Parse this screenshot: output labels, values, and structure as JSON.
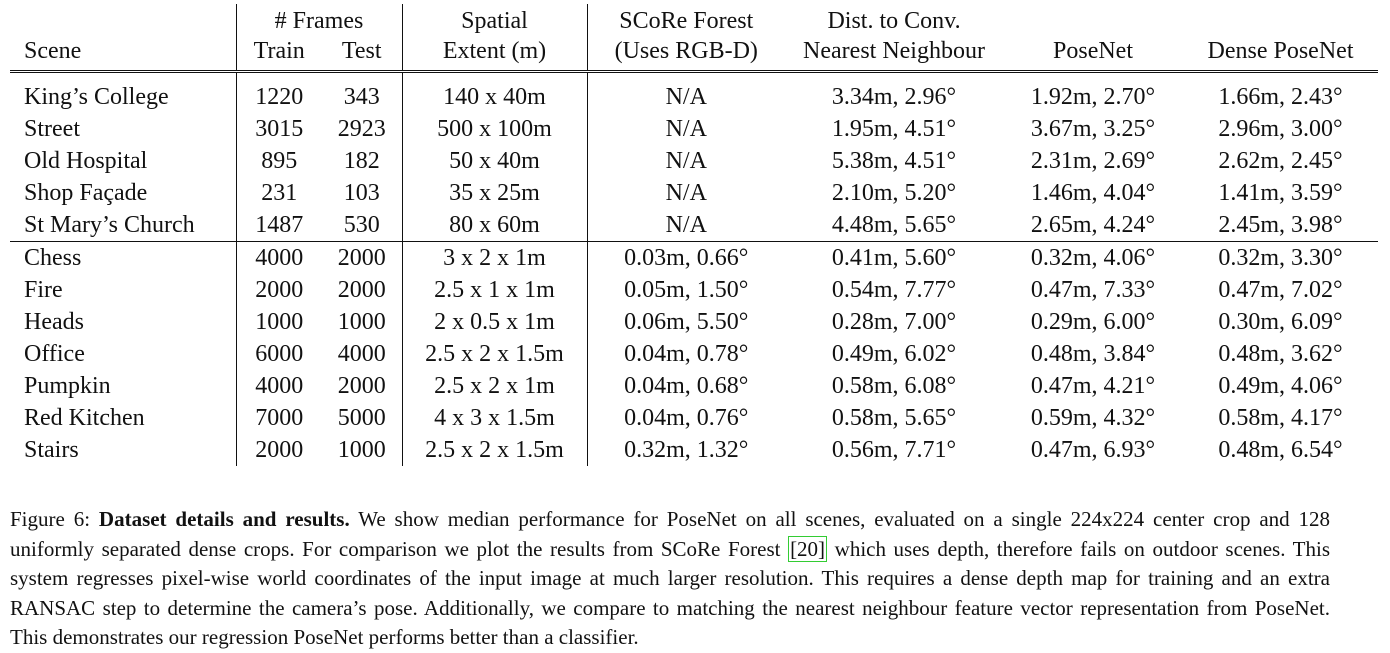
{
  "table": {
    "headers_top": [
      "",
      "# Frames",
      "Spatial",
      "SCoRe Forest",
      "Dist. to Conv.",
      "",
      ""
    ],
    "headers_bottom": [
      "Scene",
      "Train",
      "Test",
      "Extent (m)",
      "(Uses RGB-D)",
      "Nearest Neighbour",
      "PoseNet",
      "Dense PoseNet"
    ],
    "outdoor_rows": [
      [
        "King’s College",
        "1220",
        "343",
        "140 x 40m",
        "N/A",
        "3.34m, 2.96°",
        "1.92m, 2.70°",
        "1.66m, 2.43°"
      ],
      [
        "Street",
        "3015",
        "2923",
        "500 x 100m",
        "N/A",
        "1.95m, 4.51°",
        "3.67m, 3.25°",
        "2.96m, 3.00°"
      ],
      [
        "Old Hospital",
        "895",
        "182",
        "50 x 40m",
        "N/A",
        "5.38m, 4.51°",
        "2.31m, 2.69°",
        "2.62m, 2.45°"
      ],
      [
        "Shop Façade",
        "231",
        "103",
        "35 x 25m",
        "N/A",
        "2.10m, 5.20°",
        "1.46m, 4.04°",
        "1.41m, 3.59°"
      ],
      [
        "St Mary’s Church",
        "1487",
        "530",
        "80 x 60m",
        "N/A",
        "4.48m, 5.65°",
        "2.65m, 4.24°",
        "2.45m, 3.98°"
      ]
    ],
    "indoor_rows": [
      [
        "Chess",
        "4000",
        "2000",
        "3 x 2 x 1m",
        "0.03m, 0.66°",
        "0.41m, 5.60°",
        "0.32m, 4.06°",
        "0.32m, 3.30°"
      ],
      [
        "Fire",
        "2000",
        "2000",
        "2.5 x 1 x 1m",
        "0.05m, 1.50°",
        "0.54m, 7.77°",
        "0.47m, 7.33°",
        "0.47m, 7.02°"
      ],
      [
        "Heads",
        "1000",
        "1000",
        "2 x 0.5 x 1m",
        "0.06m, 5.50°",
        "0.28m, 7.00°",
        "0.29m, 6.00°",
        "0.30m, 6.09°"
      ],
      [
        "Office",
        "6000",
        "4000",
        "2.5 x 2 x 1.5m",
        "0.04m, 0.78°",
        "0.49m, 6.02°",
        "0.48m, 3.84°",
        "0.48m, 3.62°"
      ],
      [
        "Pumpkin",
        "4000",
        "2000",
        "2.5 x 2 x 1m",
        "0.04m, 0.68°",
        "0.58m, 6.08°",
        "0.47m, 4.21°",
        "0.49m, 4.06°"
      ],
      [
        "Red Kitchen",
        "7000",
        "5000",
        "4 x 3 x 1.5m",
        "0.04m, 0.76°",
        "0.58m, 5.65°",
        "0.59m, 4.32°",
        "0.58m, 4.17°"
      ],
      [
        "Stairs",
        "2000",
        "1000",
        "2.5 x 2 x 1.5m",
        "0.32m, 1.32°",
        "0.56m, 7.71°",
        "0.47m, 6.93°",
        "0.48m, 6.54°"
      ]
    ]
  },
  "caption": {
    "label": "Figure 6:",
    "bold_title": "Dataset details and results.",
    "text_before_ref": "We show median performance for PoseNet on all scenes, evaluated on a single 224x224 center crop and 128 uniformly separated dense crops. For comparison we plot the results from SCoRe Forest",
    "ref": "[20]",
    "text_after_ref": "which uses depth, therefore fails on outdoor scenes. This system regresses pixel-wise world coordinates of the input image at much larger resolution. This requires a dense depth map for training and an extra RANSAC step to determine the camera’s pose. Additionally, we compare to matching the nearest neighbour feature vector representation from PoseNet. This demonstrates our regression PoseNet performs better than a classifier.",
    "ref_color": "#33cc33"
  }
}
